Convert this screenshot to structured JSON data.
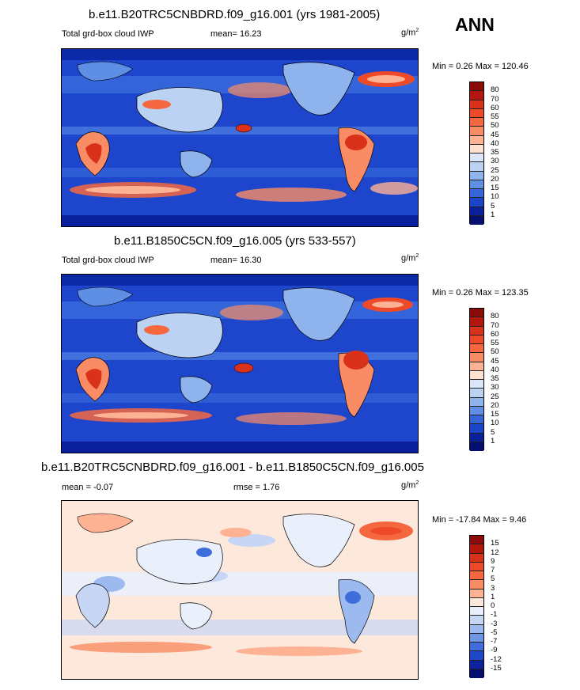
{
  "season": "ANN",
  "panels": [
    {
      "title": "b.e11.B20TRC5CNBDRD.f09_g16.001 (yrs 1981-2005)",
      "left_label": "Total grd-box cloud IWP",
      "stat1": "mean=  16.23",
      "stat2": "",
      "unit": "g/m",
      "unit_exp": "2",
      "minmax": "Min =   0.26 Max = 120.46",
      "ticks": [
        "80",
        "70",
        "60",
        "55",
        "50",
        "45",
        "40",
        "35",
        "30",
        "25",
        "20",
        "15",
        "10",
        "5",
        "1"
      ],
      "colors": [
        "#8b0a0a",
        "#b3160d",
        "#d9311a",
        "#ee4a2a",
        "#f5683f",
        "#f98c64",
        "#fcb293",
        "#fde0cd",
        "#dbe6f8",
        "#bcd2f3",
        "#8fb3ed",
        "#5e8fe4",
        "#3466d9",
        "#1a45c8",
        "#0a1f9c",
        "#050f70"
      ]
    },
    {
      "title": "b.e11.B1850C5CN.f09_g16.005 (yrs 533-557)",
      "left_label": "Total grd-box cloud IWP",
      "stat1": "mean=  16.30",
      "stat2": "",
      "unit": "g/m",
      "unit_exp": "2",
      "minmax": "Min =   0.26 Max = 123.35",
      "ticks": [
        "80",
        "70",
        "60",
        "55",
        "50",
        "45",
        "40",
        "35",
        "30",
        "25",
        "20",
        "15",
        "10",
        "5",
        "1"
      ],
      "colors": [
        "#8b0a0a",
        "#b3160d",
        "#d9311a",
        "#ee4a2a",
        "#f5683f",
        "#f98c64",
        "#fcb293",
        "#fde0cd",
        "#dbe6f8",
        "#bcd2f3",
        "#8fb3ed",
        "#5e8fe4",
        "#3466d9",
        "#1a45c8",
        "#0a1f9c",
        "#050f70"
      ]
    },
    {
      "title": "b.e11.B20TRC5CNBDRD.f09_g16.001 - b.e11.B1850C5CN.f09_g16.005",
      "left_label": "mean =  -0.07",
      "stat1": "",
      "stat2": "rmse =   1.76",
      "unit": "g/m",
      "unit_exp": "2",
      "minmax": "Min = -17.84 Max =   9.46",
      "ticks": [
        "15",
        "12",
        "9",
        "7",
        "5",
        "3",
        "1",
        "0",
        "-1",
        "-3",
        "-5",
        "-7",
        "-9",
        "-12",
        "-15"
      ],
      "colors": [
        "#8b0a0a",
        "#b3160d",
        "#d9311a",
        "#ee4a2a",
        "#f5683f",
        "#f98c64",
        "#fcb293",
        "#fde8dc",
        "#eaf0fb",
        "#c6d6f4",
        "#9cbaef",
        "#6e98e6",
        "#3f6edc",
        "#1f48c6",
        "#0b229f",
        "#050f70"
      ]
    }
  ]
}
